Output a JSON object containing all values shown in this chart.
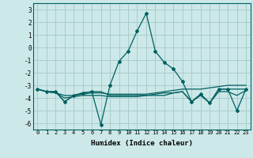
{
  "x": [
    0,
    1,
    2,
    3,
    4,
    5,
    6,
    7,
    8,
    9,
    10,
    11,
    12,
    13,
    14,
    15,
    16,
    17,
    18,
    19,
    20,
    21,
    22,
    23
  ],
  "line1": [
    -3.3,
    -3.5,
    -3.5,
    -4.3,
    -3.8,
    -3.6,
    -3.5,
    -6.1,
    -3.0,
    -1.1,
    -0.3,
    1.3,
    2.7,
    -0.3,
    -1.2,
    -1.7,
    -2.7,
    -4.3,
    -3.7,
    -4.4,
    -3.3,
    -3.3,
    -5.0,
    -3.3
  ],
  "line2": [
    -3.3,
    -3.5,
    -3.5,
    -4.3,
    -3.8,
    -3.6,
    -3.5,
    -3.5,
    -3.8,
    -3.8,
    -3.8,
    -3.8,
    -3.8,
    -3.8,
    -3.8,
    -3.6,
    -3.5,
    -4.3,
    -3.7,
    -4.4,
    -3.3,
    -3.3,
    -3.3,
    -3.3
  ],
  "line3": [
    -3.3,
    -3.5,
    -3.6,
    -3.8,
    -3.8,
    -3.7,
    -3.6,
    -3.6,
    -3.7,
    -3.7,
    -3.7,
    -3.7,
    -3.7,
    -3.6,
    -3.5,
    -3.4,
    -3.3,
    -3.3,
    -3.3,
    -3.2,
    -3.1,
    -3.0,
    -3.0,
    -3.0
  ],
  "line4": [
    -3.3,
    -3.5,
    -3.6,
    -4.0,
    -3.9,
    -3.8,
    -3.8,
    -3.8,
    -3.9,
    -3.9,
    -3.9,
    -3.9,
    -3.8,
    -3.7,
    -3.6,
    -3.6,
    -3.5,
    -4.3,
    -3.8,
    -4.4,
    -3.5,
    -3.5,
    -3.8,
    -3.4
  ],
  "bg_color": "#cce8e8",
  "grid_color": "#aacccc",
  "line_color": "#006060",
  "xlabel": "Humidex (Indice chaleur)",
  "ylim": [
    -6.5,
    3.5
  ],
  "xlim": [
    -0.5,
    23.5
  ],
  "yticks": [
    3,
    2,
    1,
    0,
    -1,
    -2,
    -3,
    -4,
    -5,
    -6
  ],
  "xticks": [
    0,
    1,
    2,
    3,
    4,
    5,
    6,
    7,
    8,
    9,
    10,
    11,
    12,
    13,
    14,
    15,
    16,
    17,
    18,
    19,
    20,
    21,
    22,
    23
  ]
}
